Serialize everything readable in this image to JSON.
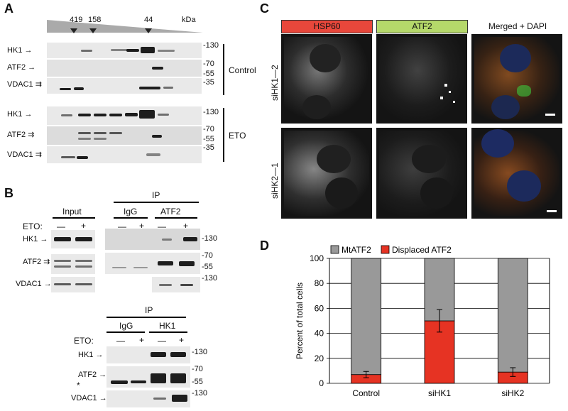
{
  "panel_a": {
    "label": "A",
    "mw_markers": [
      "419",
      "158",
      "44"
    ],
    "kda": "kDa",
    "rows": [
      "HK1",
      "ATF2",
      "VDAC1"
    ],
    "control_mw": [
      "-130",
      "-70",
      "-55",
      "-35"
    ],
    "eto_mw": [
      "-130",
      "-70",
      "-55",
      "-35"
    ],
    "group_control": "Control",
    "group_eto": "ETO"
  },
  "panel_b": {
    "label": "B",
    "input": "Input",
    "ip": "IP",
    "igg": "IgG",
    "atf2": "ATF2",
    "eto": "ETO:",
    "minus": "—",
    "plus": "+",
    "rows_top": [
      "HK1",
      "ATF2",
      "VDAC1"
    ],
    "mw_top": [
      "-130",
      "-70",
      "-55",
      "-130"
    ],
    "ip2": "IP",
    "igg2": "IgG",
    "hk1": "HK1",
    "rows_bottom": [
      "HK1",
      "ATF2",
      "VDAC1"
    ],
    "mw_bottom": [
      "-130",
      "-70",
      "-55",
      "-130"
    ],
    "asterisk": "*"
  },
  "panel_c": {
    "label": "C",
    "headers": [
      "HSP60",
      "ATF2",
      "Merged + DAPI"
    ],
    "header_colors": [
      "#e8473b",
      "#b5d86a",
      "#ffffff"
    ],
    "row_labels": [
      "siHK1—2",
      "siHK2—1"
    ]
  },
  "panel_d": {
    "label": "D"
  },
  "chart_data": {
    "type": "bar",
    "stacked": true,
    "categories": [
      "Control",
      "siHK1",
      "siHK2"
    ],
    "series": [
      {
        "name": "MtATF2",
        "values": [
          93,
          50,
          91
        ],
        "color": "#999999"
      },
      {
        "name": "Displaced ATF2",
        "values": [
          7,
          50,
          9
        ],
        "color": "#e63323",
        "errors": [
          2.5,
          9,
          3.5
        ]
      }
    ],
    "ylabel": "Percent of total cells",
    "ylim": [
      0,
      100
    ],
    "yticks": [
      "0",
      "20",
      "40",
      "60",
      "80",
      "100"
    ],
    "grid": true,
    "legend": "top"
  }
}
